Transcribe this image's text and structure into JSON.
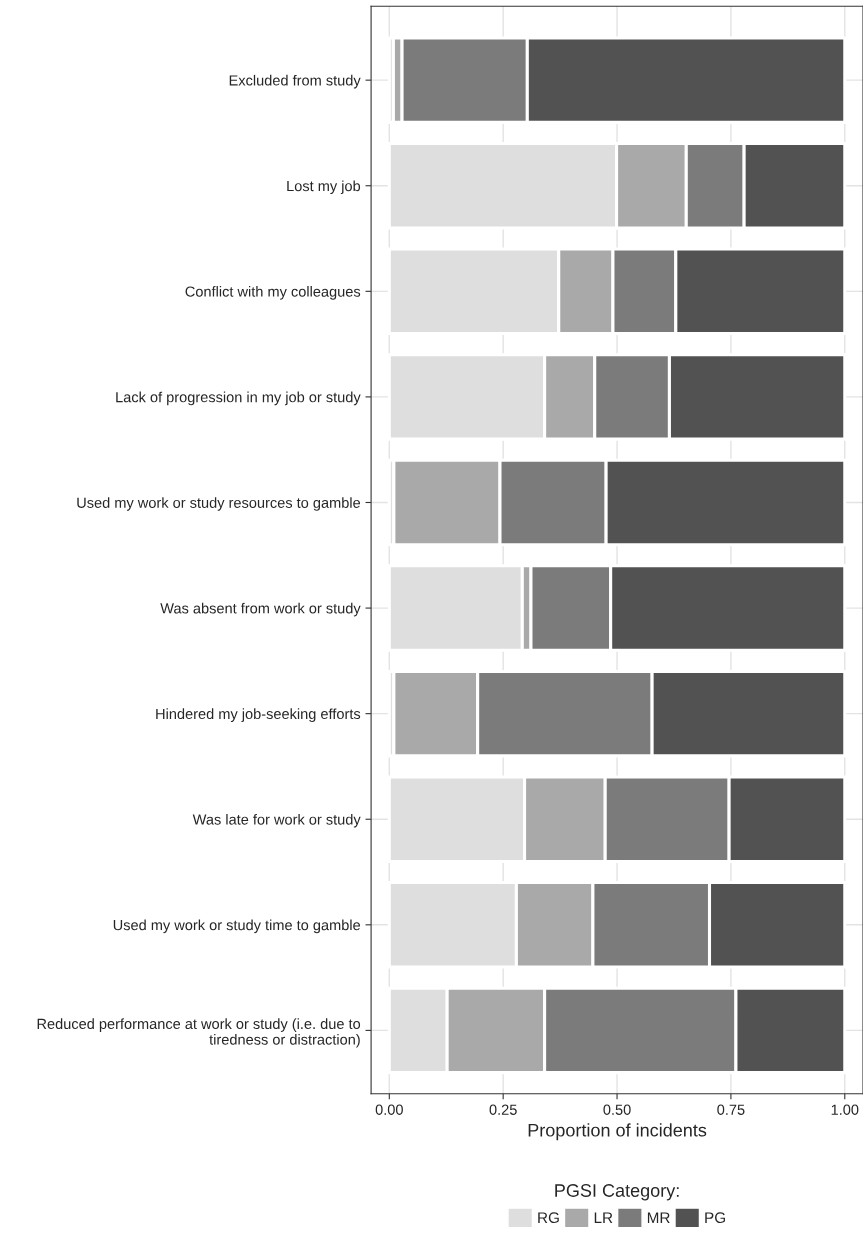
{
  "chart_data": {
    "type": "bar",
    "orientation": "horizontal",
    "stacked": true,
    "xlabel": "Proportion of incidents",
    "legend_title": "PGSI Category:",
    "categories": [
      "Excluded from study",
      "Lost my job",
      "Conflict with my colleagues",
      "Lack of progression in my job or study",
      "Used my work or study resources to gamble",
      "Was absent from work or study",
      "Hindered my job-seeking efforts",
      "Was late for work or study",
      "Used my work or study time to gamble",
      "Reduced performance at work or study (i.e. due to\ntiredness or distraction)"
    ],
    "series": [
      {
        "name": "RG",
        "color": "#dedede",
        "values": [
          0.009,
          0.499,
          0.372,
          0.341,
          0.01,
          0.292,
          0.01,
          0.297,
          0.279,
          0.127
        ]
      },
      {
        "name": "LR",
        "color": "#a9a9a9",
        "values": [
          0.019,
          0.153,
          0.119,
          0.11,
          0.233,
          0.019,
          0.184,
          0.177,
          0.168,
          0.214
        ]
      },
      {
        "name": "MR",
        "color": "#7b7b7b",
        "values": [
          0.275,
          0.127,
          0.138,
          0.164,
          0.233,
          0.175,
          0.383,
          0.272,
          0.256,
          0.42
        ]
      },
      {
        "name": "PG",
        "color": "#525252",
        "values": [
          0.697,
          0.221,
          0.371,
          0.385,
          0.524,
          0.514,
          0.423,
          0.254,
          0.297,
          0.239
        ]
      }
    ],
    "xlim": [
      -0.04,
      1.04
    ],
    "xticks": [
      {
        "value": 0,
        "label": "0.00"
      },
      {
        "value": 0.25,
        "label": "0.25"
      },
      {
        "value": 0.5,
        "label": "0.50"
      },
      {
        "value": 0.75,
        "label": "0.75"
      },
      {
        "value": 1,
        "label": "1.00"
      }
    ],
    "grid": true,
    "legend": "bottom"
  }
}
